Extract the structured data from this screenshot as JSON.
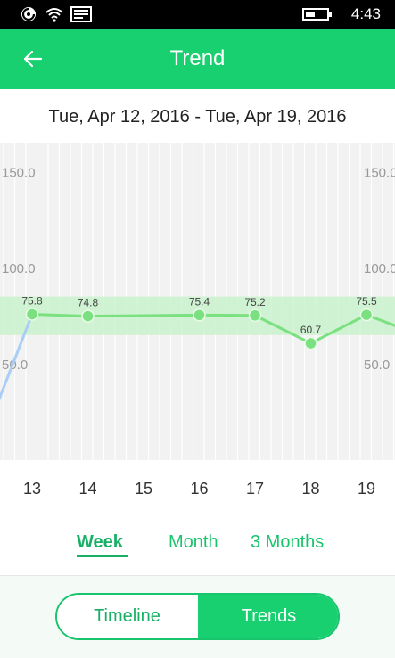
{
  "status_bar": {
    "time": "4:43"
  },
  "header": {
    "title": "Trend",
    "back_icon": "arrow-left-icon"
  },
  "date_range": "Tue, Apr 12, 2016 - Tue, Apr 19, 2016",
  "range_tabs": [
    {
      "label": "Week",
      "active": true
    },
    {
      "label": "Month",
      "active": false
    },
    {
      "label": "3 Months",
      "active": false
    }
  ],
  "view_toggle": {
    "left_label": "Timeline",
    "right_label": "Trends",
    "selected": "Trends"
  },
  "colors": {
    "accent": "#18d06f",
    "line": "#7be07f",
    "band": "#c9f2cd",
    "offscreen_line": "#a9cdf5"
  },
  "chart_data": {
    "type": "line",
    "title": "",
    "xlabel": "",
    "ylabel": "",
    "x_ticks": [
      "13",
      "14",
      "15",
      "16",
      "17",
      "18",
      "19"
    ],
    "y_ticks": [
      "150.0",
      "100.0",
      "50.0"
    ],
    "y_tick_values": [
      150,
      100,
      50
    ],
    "series": [
      {
        "points": [
          {
            "x": 13,
            "y": 75.8,
            "label": "75.8"
          },
          {
            "x": 14,
            "y": 74.8,
            "label": "74.8"
          },
          {
            "x": 16,
            "y": 75.4,
            "label": "75.4"
          },
          {
            "x": 17,
            "y": 75.2,
            "label": "75.2"
          },
          {
            "x": 18,
            "y": 60.7,
            "label": "60.7"
          },
          {
            "x": 19,
            "y": 75.5,
            "label": "75.5"
          }
        ]
      }
    ],
    "target_band": [
      65,
      85
    ],
    "ylim": [
      0,
      165
    ],
    "grid": true,
    "legend": "none"
  }
}
